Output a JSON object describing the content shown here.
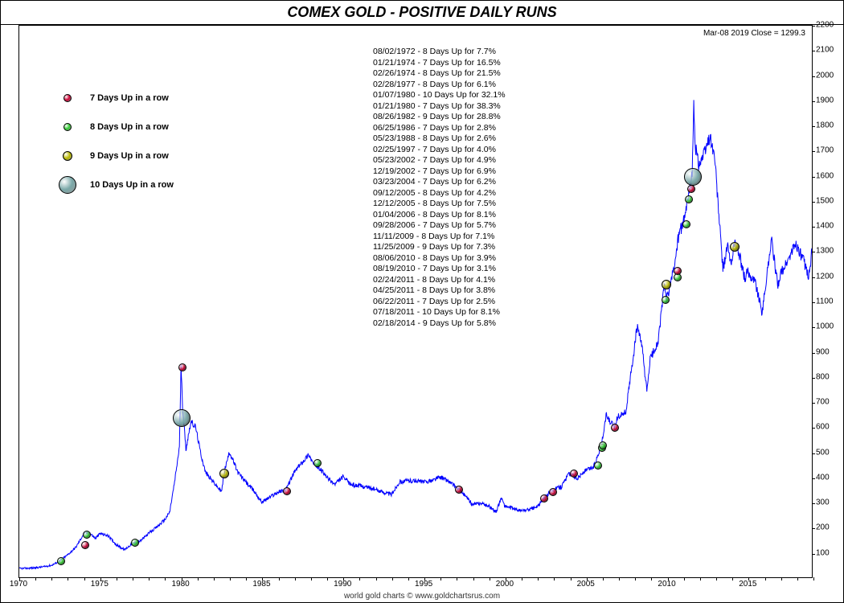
{
  "title": "COMEX GOLD - POSITIVE DAILY RUNS",
  "footer": "world gold charts © www.goldchartsrus.com",
  "header_info": "Mar-08  2019    Close = 1299.3",
  "chart": {
    "type": "line",
    "xlim": [
      1970,
      2019
    ],
    "ylim": [
      0,
      2200
    ],
    "ytick_step": 100,
    "xtick_step": 5,
    "background_color": "#ffffff",
    "border_color": "#000000",
    "line_color": "#0000ff",
    "line_width": 1,
    "tick_font_size": 10,
    "title_font_size": 18
  },
  "legend": {
    "items": [
      {
        "label": "7 Days Up in a row",
        "color": "#cc0033",
        "size": 8
      },
      {
        "label": "8 Days Up in a row",
        "color": "#33cc33",
        "size": 8
      },
      {
        "label": "9 Days Up in a row",
        "color": "#b8b800",
        "size": 10
      },
      {
        "label": "10 Days Up in a row",
        "color": "#7aa8a8",
        "size": 20
      }
    ]
  },
  "annotations": [
    "08/02/1972 - 8 Days Up for 7.7%",
    "01/21/1974 - 7 Days Up for 16.5%",
    "02/26/1974 - 8 Days Up for 21.5%",
    "02/28/1977 - 8 Days Up for 6.1%",
    "01/07/1980 - 10 Days Up for 32.1%",
    "01/21/1980 - 7 Days Up for 38.3%",
    "08/26/1982 - 9 Days Up for 28.8%",
    "06/25/1986 - 7 Days Up for 2.8%",
    "05/23/1988 - 8 Days Up for 2.6%",
    "02/25/1997 - 7 Days Up for 4.0%",
    "05/23/2002 - 7 Days Up for 4.9%",
    "12/19/2002 - 7 Days Up for 6.9%",
    "03/23/2004 - 7 Days Up for 6.2%",
    "09/12/2005 - 8 Days Up for 4.2%",
    "12/12/2005 - 8 Days Up for 7.5%",
    "01/04/2006 - 8 Days Up for 8.1%",
    "09/28/2006 - 7 Days Up for 5.7%",
    "11/11/2009 - 8 Days Up for 7.1%",
    "11/25/2009 - 9 Days Up for 7.3%",
    "08/06/2010 - 8 Days Up for 3.9%",
    "08/19/2010 - 7 Days Up for 3.1%",
    "02/24/2011 - 8 Days Up for 4.1%",
    "04/25/2011 - 8 Days Up for 3.8%",
    "06/22/2011 - 7 Days Up for 2.5%",
    "07/18/2011 - 10 Days Up for 8.1%",
    "02/18/2014 - 9 Days Up for 5.8%"
  ],
  "markers": [
    {
      "year": 1972.6,
      "price": 70,
      "type": 1
    },
    {
      "year": 1974.05,
      "price": 135,
      "type": 0
    },
    {
      "year": 1974.15,
      "price": 175,
      "type": 1
    },
    {
      "year": 1977.15,
      "price": 145,
      "type": 1
    },
    {
      "year": 1980.02,
      "price": 640,
      "type": 3
    },
    {
      "year": 1980.06,
      "price": 840,
      "type": 0
    },
    {
      "year": 1982.65,
      "price": 420,
      "type": 2
    },
    {
      "year": 1986.5,
      "price": 350,
      "type": 0
    },
    {
      "year": 1988.4,
      "price": 460,
      "type": 1
    },
    {
      "year": 1997.15,
      "price": 355,
      "type": 0
    },
    {
      "year": 2002.4,
      "price": 320,
      "type": 0
    },
    {
      "year": 2002.95,
      "price": 345,
      "type": 0
    },
    {
      "year": 2004.22,
      "price": 420,
      "type": 0
    },
    {
      "year": 2005.7,
      "price": 450,
      "type": 1
    },
    {
      "year": 2005.95,
      "price": 520,
      "type": 1
    },
    {
      "year": 2006.02,
      "price": 530,
      "type": 1
    },
    {
      "year": 2006.74,
      "price": 600,
      "type": 0
    },
    {
      "year": 2009.86,
      "price": 1110,
      "type": 1
    },
    {
      "year": 2009.9,
      "price": 1170,
      "type": 2
    },
    {
      "year": 2010.6,
      "price": 1200,
      "type": 1
    },
    {
      "year": 2010.63,
      "price": 1225,
      "type": 0
    },
    {
      "year": 2011.15,
      "price": 1410,
      "type": 1
    },
    {
      "year": 2011.31,
      "price": 1510,
      "type": 1
    },
    {
      "year": 2011.47,
      "price": 1550,
      "type": 0
    },
    {
      "year": 2011.54,
      "price": 1600,
      "type": 3
    },
    {
      "year": 2014.13,
      "price": 1320,
      "type": 2
    }
  ],
  "price_series": [
    [
      1970.0,
      35
    ],
    [
      1970.5,
      36
    ],
    [
      1971.0,
      38
    ],
    [
      1971.5,
      42
    ],
    [
      1972.0,
      48
    ],
    [
      1972.5,
      65
    ],
    [
      1973.0,
      90
    ],
    [
      1973.5,
      120
    ],
    [
      1974.0,
      175
    ],
    [
      1974.3,
      180
    ],
    [
      1974.7,
      155
    ],
    [
      1975.0,
      175
    ],
    [
      1975.5,
      165
    ],
    [
      1976.0,
      130
    ],
    [
      1976.5,
      110
    ],
    [
      1977.0,
      135
    ],
    [
      1977.5,
      145
    ],
    [
      1978.0,
      175
    ],
    [
      1978.5,
      200
    ],
    [
      1979.0,
      230
    ],
    [
      1979.3,
      260
    ],
    [
      1979.6,
      380
    ],
    [
      1979.9,
      520
    ],
    [
      1980.0,
      840
    ],
    [
      1980.1,
      680
    ],
    [
      1980.3,
      510
    ],
    [
      1980.6,
      620
    ],
    [
      1980.9,
      600
    ],
    [
      1981.2,
      500
    ],
    [
      1981.5,
      420
    ],
    [
      1982.0,
      380
    ],
    [
      1982.5,
      340
    ],
    [
      1982.7,
      430
    ],
    [
      1983.0,
      500
    ],
    [
      1983.5,
      420
    ],
    [
      1984.0,
      380
    ],
    [
      1984.5,
      345
    ],
    [
      1985.0,
      300
    ],
    [
      1985.5,
      320
    ],
    [
      1986.0,
      340
    ],
    [
      1986.5,
      350
    ],
    [
      1987.0,
      420
    ],
    [
      1987.5,
      460
    ],
    [
      1987.9,
      490
    ],
    [
      1988.2,
      450
    ],
    [
      1988.5,
      440
    ],
    [
      1989.0,
      400
    ],
    [
      1989.5,
      370
    ],
    [
      1990.0,
      400
    ],
    [
      1990.5,
      370
    ],
    [
      1991.0,
      365
    ],
    [
      1991.5,
      360
    ],
    [
      1992.0,
      350
    ],
    [
      1992.5,
      340
    ],
    [
      1993.0,
      330
    ],
    [
      1993.5,
      380
    ],
    [
      1994.0,
      385
    ],
    [
      1994.5,
      385
    ],
    [
      1995.0,
      380
    ],
    [
      1995.5,
      385
    ],
    [
      1996.0,
      400
    ],
    [
      1996.5,
      385
    ],
    [
      1997.0,
      360
    ],
    [
      1997.5,
      330
    ],
    [
      1998.0,
      290
    ],
    [
      1998.5,
      295
    ],
    [
      1999.0,
      285
    ],
    [
      1999.5,
      260
    ],
    [
      1999.8,
      320
    ],
    [
      2000.0,
      285
    ],
    [
      2000.5,
      275
    ],
    [
      2001.0,
      265
    ],
    [
      2001.5,
      270
    ],
    [
      2002.0,
      280
    ],
    [
      2002.5,
      320
    ],
    [
      2003.0,
      350
    ],
    [
      2003.5,
      360
    ],
    [
      2004.0,
      415
    ],
    [
      2004.5,
      395
    ],
    [
      2005.0,
      425
    ],
    [
      2005.5,
      440
    ],
    [
      2006.0,
      530
    ],
    [
      2006.3,
      650
    ],
    [
      2006.5,
      620
    ],
    [
      2006.8,
      600
    ],
    [
      2007.0,
      640
    ],
    [
      2007.5,
      660
    ],
    [
      2008.0,
      900
    ],
    [
      2008.2,
      1000
    ],
    [
      2008.5,
      920
    ],
    [
      2008.8,
      740
    ],
    [
      2009.0,
      870
    ],
    [
      2009.5,
      940
    ],
    [
      2009.9,
      1180
    ],
    [
      2010.0,
      1100
    ],
    [
      2010.5,
      1240
    ],
    [
      2010.8,
      1380
    ],
    [
      2011.0,
      1400
    ],
    [
      2011.3,
      1500
    ],
    [
      2011.6,
      1600
    ],
    [
      2011.7,
      1880
    ],
    [
      2011.8,
      1720
    ],
    [
      2012.0,
      1650
    ],
    [
      2012.3,
      1680
    ],
    [
      2012.7,
      1760
    ],
    [
      2013.0,
      1670
    ],
    [
      2013.3,
      1400
    ],
    [
      2013.5,
      1230
    ],
    [
      2013.8,
      1320
    ],
    [
      2014.0,
      1240
    ],
    [
      2014.2,
      1340
    ],
    [
      2014.5,
      1290
    ],
    [
      2014.9,
      1180
    ],
    [
      2015.0,
      1220
    ],
    [
      2015.5,
      1180
    ],
    [
      2015.9,
      1060
    ],
    [
      2016.0,
      1090
    ],
    [
      2016.5,
      1350
    ],
    [
      2016.9,
      1160
    ],
    [
      2017.0,
      1200
    ],
    [
      2017.5,
      1260
    ],
    [
      2018.0,
      1330
    ],
    [
      2018.5,
      1260
    ],
    [
      2018.8,
      1200
    ],
    [
      2019.0,
      1300
    ],
    [
      2019.18,
      1299
    ]
  ]
}
